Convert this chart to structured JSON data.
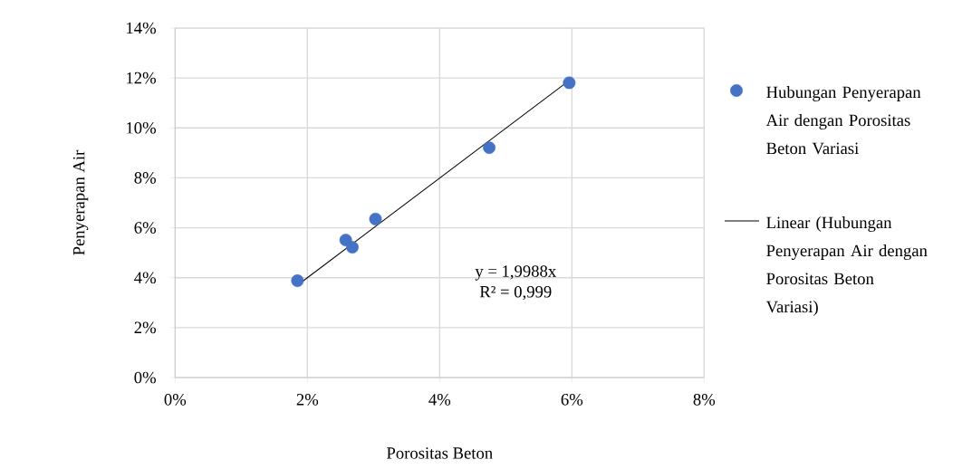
{
  "chart_data": {
    "type": "scatter",
    "xlabel": "Porositas Beton",
    "ylabel": "Penyerapan Air",
    "xlim": [
      0,
      8
    ],
    "ylim": [
      0,
      14
    ],
    "xticks": [
      {
        "value": 0,
        "label": "0%"
      },
      {
        "value": 2,
        "label": "2%"
      },
      {
        "value": 4,
        "label": "4%"
      },
      {
        "value": 6,
        "label": "6%"
      },
      {
        "value": 8,
        "label": "8%"
      }
    ],
    "yticks": [
      {
        "value": 0,
        "label": "0%"
      },
      {
        "value": 2,
        "label": "2%"
      },
      {
        "value": 4,
        "label": "4%"
      },
      {
        "value": 6,
        "label": "6%"
      },
      {
        "value": 8,
        "label": "8%"
      },
      {
        "value": 10,
        "label": "10%"
      },
      {
        "value": 12,
        "label": "12%"
      },
      {
        "value": 14,
        "label": "14%"
      }
    ],
    "grid": true,
    "legend": "right",
    "marker": "circle",
    "series": [
      {
        "name": "Hubungan Penyerapan Air dengan Porositas Beton Variasi",
        "color": "#4472c4",
        "x": [
          1.85,
          2.58,
          2.68,
          3.03,
          4.75,
          5.96
        ],
        "values": [
          3.88,
          5.51,
          5.22,
          6.35,
          9.21,
          11.81
        ]
      },
      {
        "name": "Linear (Hubungan Penyerapan Air dengan Porositas Beton Variasi)",
        "type": "line",
        "marker": "none",
        "line_style": "solid",
        "color": "#000000",
        "x": [
          1.85,
          5.96
        ],
        "values": [
          3.7,
          11.9
        ]
      }
    ],
    "annotations": [
      "y = 1,9988x",
      "R² = 0,999"
    ]
  }
}
